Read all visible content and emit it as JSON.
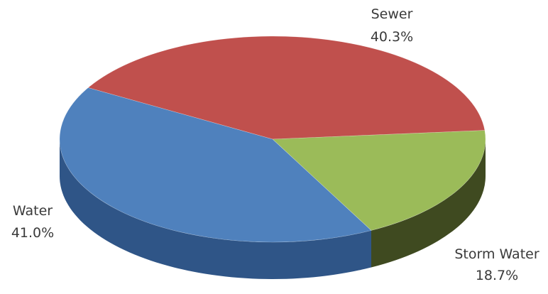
{
  "chart_data": {
    "type": "pie",
    "style": "3d",
    "title": "",
    "slices": [
      {
        "label": "Sewer",
        "value": 40.3,
        "value_label": "40.3%",
        "color": "#c0504d",
        "side_color": "#8a2f2d"
      },
      {
        "label": "Storm Water",
        "value": 18.7,
        "value_label": "18.7%",
        "color": "#9bbb59",
        "side_color": "#3f4a20"
      },
      {
        "label": "Water",
        "value": 41.0,
        "value_label": "41.0%",
        "color": "#4f81bd",
        "side_color": "#2f5587"
      }
    ],
    "legend": "none",
    "data_labels": "outside"
  }
}
